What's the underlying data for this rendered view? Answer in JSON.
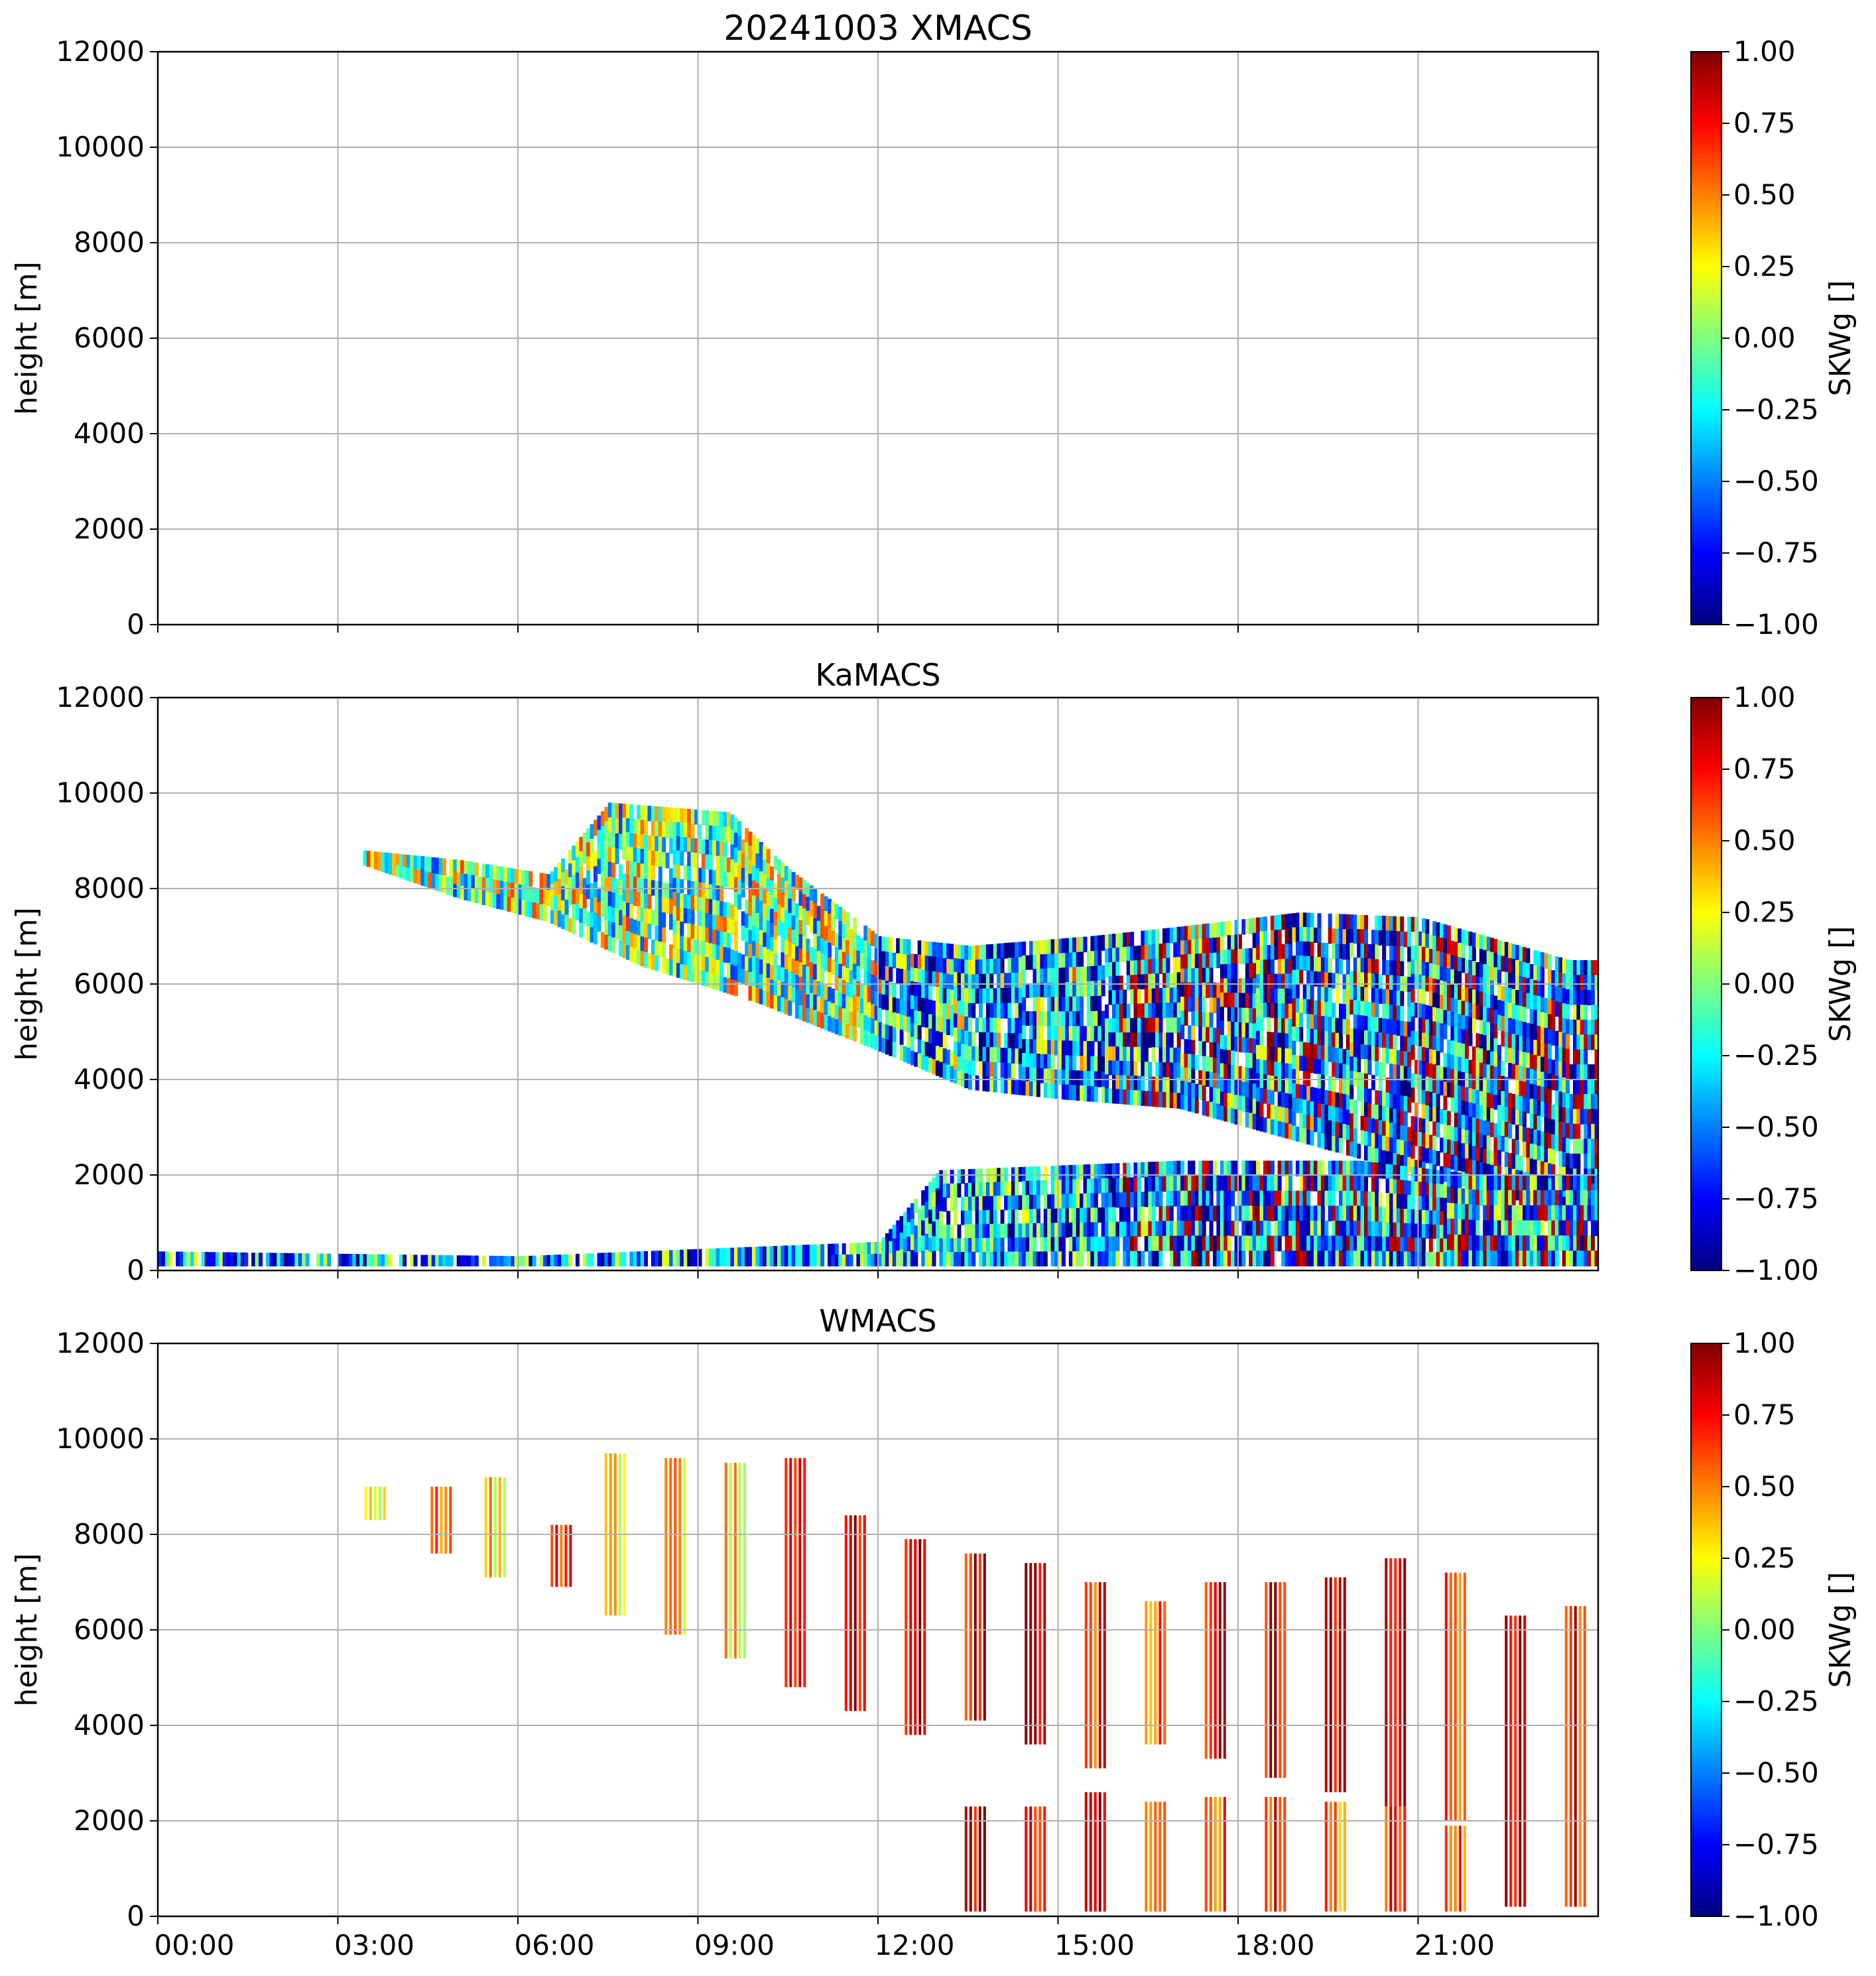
{
  "figure": {
    "title": "20241003 XMACS"
  },
  "chart_data": [
    {
      "type": "heatmap",
      "title": "20241003 XMACS",
      "xlabel": "",
      "ylabel": "height [m]",
      "xlim": [
        0,
        24
      ],
      "ylim": [
        0,
        12000
      ],
      "yticks": [
        0,
        2000,
        4000,
        6000,
        8000,
        10000,
        12000
      ],
      "grid": true,
      "colorbar": {
        "label": "SKWg []",
        "range": [
          -1,
          1
        ],
        "ticks": [
          "1.00",
          "0.75",
          "0.50",
          "0.25",
          "0.00",
          "−0.25",
          "−0.50",
          "−0.75",
          "−1.00"
        ]
      },
      "regions": []
    },
    {
      "type": "heatmap",
      "title": "KaMACS",
      "xlabel": "",
      "ylabel": "height [m]",
      "xlim": [
        0,
        24
      ],
      "ylim": [
        0,
        12000
      ],
      "yticks": [
        0,
        2000,
        4000,
        6000,
        8000,
        10000,
        12000
      ],
      "grid": true,
      "colorbar": {
        "label": "SKWg []",
        "range": [
          -1,
          1
        ],
        "ticks": [
          "1.00",
          "0.75",
          "0.50",
          "0.25",
          "0.00",
          "−0.25",
          "−0.50",
          "−0.75",
          "−1.00"
        ]
      },
      "regions": [
        {
          "description": "upper ice cloud layer",
          "top_profile": [
            [
              3.4,
              8800
            ],
            [
              5.0,
              8600
            ],
            [
              6.5,
              8300
            ],
            [
              7.5,
              9800
            ],
            [
              9.5,
              9600
            ],
            [
              10.5,
              8400
            ],
            [
              12,
              7000
            ],
            [
              13.5,
              6800
            ],
            [
              15.5,
              7000
            ],
            [
              17,
              7200
            ],
            [
              19,
              7500
            ],
            [
              21,
              7400
            ],
            [
              23.5,
              6500
            ]
          ],
          "base_profile": [
            [
              3.4,
              8500
            ],
            [
              5.0,
              7800
            ],
            [
              6.5,
              7300
            ],
            [
              8,
              6400
            ],
            [
              10,
              5600
            ],
            [
              12,
              4600
            ],
            [
              13.5,
              3800
            ],
            [
              15,
              3600
            ],
            [
              17,
              3400
            ],
            [
              19,
              2700
            ],
            [
              21,
              2000
            ],
            [
              23.5,
              1200
            ]
          ],
          "value_hint": 0.0
        },
        {
          "description": "low-level precipitation / boundary layer",
          "top_profile": [
            [
              0,
              400
            ],
            [
              6,
              300
            ],
            [
              12,
              600
            ],
            [
              13,
              2100
            ],
            [
              17,
              2300
            ],
            [
              20,
              2300
            ],
            [
              22,
              2000
            ],
            [
              24,
              2000
            ]
          ],
          "base_profile": [
            [
              0,
              100
            ],
            [
              24,
              100
            ]
          ],
          "value_hint": -0.4
        }
      ]
    },
    {
      "type": "heatmap",
      "title": "WMACS",
      "xlabel": "",
      "ylabel": "height [m]",
      "xlim": [
        0,
        24
      ],
      "ylim": [
        0,
        12000
      ],
      "yticks": [
        0,
        2000,
        4000,
        6000,
        8000,
        10000,
        12000
      ],
      "xticks": [
        "00:00",
        "03:00",
        "06:00",
        "09:00",
        "12:00",
        "15:00",
        "18:00",
        "21:00"
      ],
      "xtick_values": [
        0,
        3,
        6,
        9,
        12,
        15,
        18,
        21
      ],
      "grid": true,
      "colorbar": {
        "label": "SKWg []",
        "range": [
          -1,
          1
        ],
        "ticks": [
          "1.00",
          "0.75",
          "0.50",
          "0.25",
          "0.00",
          "−0.25",
          "−0.50",
          "−0.75",
          "−1.00"
        ]
      },
      "strips": [
        {
          "t": 3.6,
          "base": 8300,
          "top": 9000,
          "v": 0.3
        },
        {
          "t": 4.7,
          "base": 7600,
          "top": 9000,
          "v": 0.6
        },
        {
          "t": 5.6,
          "base": 7100,
          "top": 9200,
          "v": 0.35
        },
        {
          "t": 6.7,
          "base": 6900,
          "top": 8200,
          "v": 0.7
        },
        {
          "t": 7.6,
          "base": 6300,
          "top": 9700,
          "v": 0.35
        },
        {
          "t": 8.6,
          "base": 5900,
          "top": 9600,
          "v": 0.4
        },
        {
          "t": 9.6,
          "base": 5400,
          "top": 9500,
          "v": 0.3
        },
        {
          "t": 10.6,
          "base": 4800,
          "top": 9600,
          "v": 0.6
        },
        {
          "t": 11.6,
          "base": 4300,
          "top": 8400,
          "v": 0.85
        },
        {
          "t": 12.6,
          "base": 3800,
          "top": 7900,
          "v": 0.85
        },
        {
          "t": 13.6,
          "base": 4100,
          "top": 7600,
          "v": 0.8
        },
        {
          "t": 14.6,
          "base": 3600,
          "top": 7400,
          "v": 0.9
        },
        {
          "t": 15.6,
          "base": 3100,
          "top": 7000,
          "v": 0.65
        },
        {
          "t": 16.6,
          "base": 3600,
          "top": 6600,
          "v": 0.6
        },
        {
          "t": 17.6,
          "base": 3300,
          "top": 7000,
          "v": 0.75
        },
        {
          "t": 18.6,
          "base": 2900,
          "top": 7000,
          "v": 0.8
        },
        {
          "t": 19.6,
          "base": 2600,
          "top": 7100,
          "v": 0.8
        },
        {
          "t": 20.6,
          "base": 2300,
          "top": 7500,
          "v": 0.85
        },
        {
          "t": 21.6,
          "base": 2000,
          "top": 7200,
          "v": 0.6
        },
        {
          "t": 22.6,
          "base": 200,
          "top": 6300,
          "v": 0.75
        },
        {
          "t": 23.6,
          "base": 200,
          "top": 6500,
          "v": 0.7
        },
        {
          "t": 13.6,
          "base": 100,
          "top": 2300,
          "v": 0.9
        },
        {
          "t": 14.6,
          "base": 100,
          "top": 2300,
          "v": 0.85
        },
        {
          "t": 15.6,
          "base": 100,
          "top": 2600,
          "v": 0.9
        },
        {
          "t": 16.6,
          "base": 100,
          "top": 2400,
          "v": 0.6
        },
        {
          "t": 17.6,
          "base": 100,
          "top": 2500,
          "v": 0.6
        },
        {
          "t": 18.6,
          "base": 100,
          "top": 2500,
          "v": 0.7
        },
        {
          "t": 19.6,
          "base": 100,
          "top": 2400,
          "v": 0.55
        },
        {
          "t": 20.6,
          "base": 100,
          "top": 2300,
          "v": 0.7
        },
        {
          "t": 21.6,
          "base": 100,
          "top": 1900,
          "v": 0.5
        }
      ]
    }
  ]
}
